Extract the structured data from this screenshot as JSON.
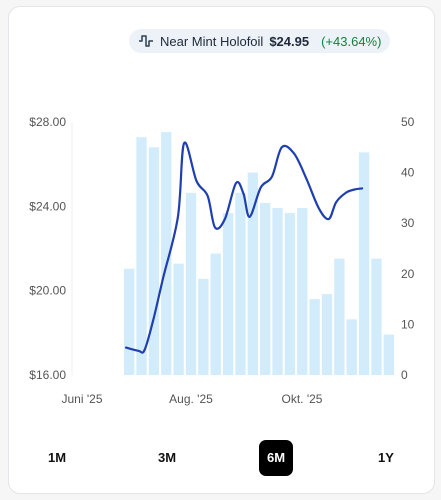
{
  "header": {
    "icon": "price-chart-icon",
    "variant": "Near Mint Holofoil",
    "price": "$24.95",
    "change": "(+43.64%)",
    "change_color": "#16803c"
  },
  "tabs": [
    {
      "label": "1M",
      "active": false
    },
    {
      "label": "3M",
      "active": false
    },
    {
      "label": "6M",
      "active": true
    },
    {
      "label": "1Y",
      "active": false
    }
  ],
  "chart_data": {
    "type": "bar+line",
    "colors": {
      "bars": "#d3ecfb",
      "line": "#1f3fb0",
      "text": "#555555"
    },
    "x_ticks": [
      "Juni '25",
      "Aug. '25",
      "Okt. '25"
    ],
    "y_left": {
      "ticks": [
        "$16.00",
        "$20.00",
        "$24.00",
        "$28.00"
      ],
      "range": [
        16,
        28
      ]
    },
    "y_right": {
      "ticks": [
        "0",
        "10",
        "20",
        "30",
        "40",
        "50"
      ],
      "range": [
        0,
        50
      ]
    },
    "volume_bars": [
      21,
      47,
      45,
      48,
      22,
      36,
      19,
      24,
      32,
      36,
      40,
      34,
      33,
      32,
      33,
      15,
      16,
      23,
      11,
      44,
      23,
      8
    ],
    "price_line": [
      [
        0.0,
        17.3
      ],
      [
        1.0,
        17.15
      ],
      [
        1.5,
        17.18
      ],
      [
        2.2,
        18.6
      ],
      [
        3.0,
        20.6
      ],
      [
        4.2,
        23.5
      ],
      [
        4.7,
        27.0
      ],
      [
        5.7,
        25.2
      ],
      [
        6.6,
        24.5
      ],
      [
        7.2,
        23.0
      ],
      [
        8.0,
        23.4
      ],
      [
        8.9,
        25.1
      ],
      [
        9.5,
        24.6
      ],
      [
        10.0,
        23.5
      ],
      [
        10.9,
        24.9
      ],
      [
        11.8,
        25.4
      ],
      [
        12.6,
        26.8
      ],
      [
        13.6,
        26.5
      ],
      [
        14.6,
        25.3
      ],
      [
        15.6,
        23.9
      ],
      [
        16.4,
        23.4
      ],
      [
        17.0,
        24.2
      ],
      [
        17.8,
        24.65
      ],
      [
        18.5,
        24.8
      ],
      [
        19.1,
        24.85
      ]
    ]
  }
}
